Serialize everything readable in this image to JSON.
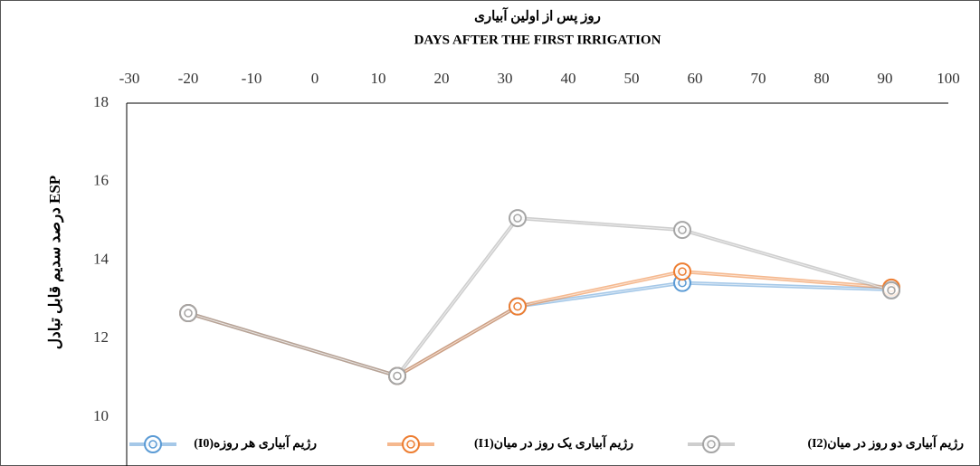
{
  "chart_data": {
    "type": "line",
    "x_label": "روز پس از اولین آبیاری",
    "x_label_en": "DAYS AFTER THE FIRST IRRIGATION",
    "y_label": "درصد سدیم قابل تبادل ESP",
    "x": [
      -20,
      13,
      32,
      58,
      91
    ],
    "series": [
      {
        "name": "رژیم آبیاری هر روزه(I0)",
        "color": "#5b9bd5",
        "values": [
          12.65,
          11.05,
          12.82,
          13.42,
          13.25
        ]
      },
      {
        "name": "رژیم آبیاری یک روز در میان(I1)",
        "color": "#ed7d31",
        "values": [
          12.65,
          11.05,
          12.82,
          13.71,
          13.3
        ]
      },
      {
        "name": "رژیم آبیاری دو روز در میان(I2)",
        "color": "#a5a5a5",
        "values": [
          12.65,
          11.05,
          15.07,
          14.77,
          13.23
        ]
      }
    ],
    "xlim": [
      -30,
      100
    ],
    "xticks": [
      -30,
      -20,
      -10,
      0,
      10,
      20,
      30,
      40,
      50,
      60,
      70,
      80,
      90,
      100
    ],
    "ylim": [
      10,
      18
    ],
    "yticks": [
      10,
      12,
      14,
      16,
      18
    ],
    "grid": false,
    "legend": "bottom"
  }
}
